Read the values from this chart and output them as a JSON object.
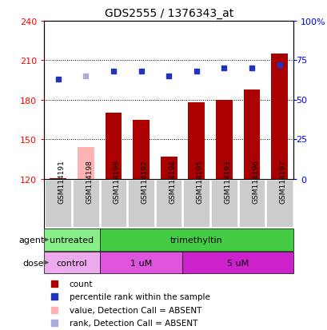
{
  "title": "GDS2555 / 1376343_at",
  "samples": [
    "GSM114191",
    "GSM114198",
    "GSM114199",
    "GSM114192",
    "GSM114194",
    "GSM114195",
    "GSM114193",
    "GSM114196",
    "GSM114197"
  ],
  "bar_values": [
    120.5,
    144,
    170,
    165,
    137,
    178,
    180,
    188,
    215
  ],
  "bar_absent": [
    false,
    true,
    false,
    false,
    false,
    false,
    false,
    false,
    false
  ],
  "bar_color_normal": "#aa0000",
  "bar_color_absent": "#ffb3b3",
  "baseline": 120,
  "rank_values": [
    63,
    65,
    68,
    68,
    65,
    68,
    70,
    70,
    72
  ],
  "rank_absent": [
    false,
    true,
    false,
    false,
    false,
    false,
    false,
    false,
    false
  ],
  "rank_color_normal": "#2233bb",
  "rank_color_absent": "#aaaadd",
  "ylim_left": [
    120,
    240
  ],
  "ylim_right": [
    0,
    100
  ],
  "yticks_left": [
    120,
    150,
    180,
    210,
    240
  ],
  "yticks_right": [
    0,
    25,
    50,
    75,
    100
  ],
  "ytick_labels_right": [
    "0",
    "25",
    "50",
    "75",
    "100%"
  ],
  "agent_groups": [
    {
      "label": "untreated",
      "start": 0,
      "end": 2,
      "color": "#88ee88"
    },
    {
      "label": "trimethyltin",
      "start": 2,
      "end": 9,
      "color": "#44cc44"
    }
  ],
  "dose_groups": [
    {
      "label": "control",
      "start": 0,
      "end": 2,
      "color": "#eeaaee"
    },
    {
      "label": "1 uM",
      "start": 2,
      "end": 5,
      "color": "#dd55dd"
    },
    {
      "label": "5 uM",
      "start": 5,
      "end": 9,
      "color": "#cc22cc"
    }
  ],
  "agent_label": "agent",
  "dose_label": "dose",
  "legend_items": [
    {
      "color": "#aa0000",
      "label": "count"
    },
    {
      "color": "#2233bb",
      "label": "percentile rank within the sample"
    },
    {
      "color": "#ffb3b3",
      "label": "value, Detection Call = ABSENT"
    },
    {
      "color": "#aaaadd",
      "label": "rank, Detection Call = ABSENT"
    }
  ],
  "bg_color": "#ffffff",
  "sample_bg_color": "#cccccc",
  "grid_dotted_at": [
    150,
    180,
    210
  ]
}
